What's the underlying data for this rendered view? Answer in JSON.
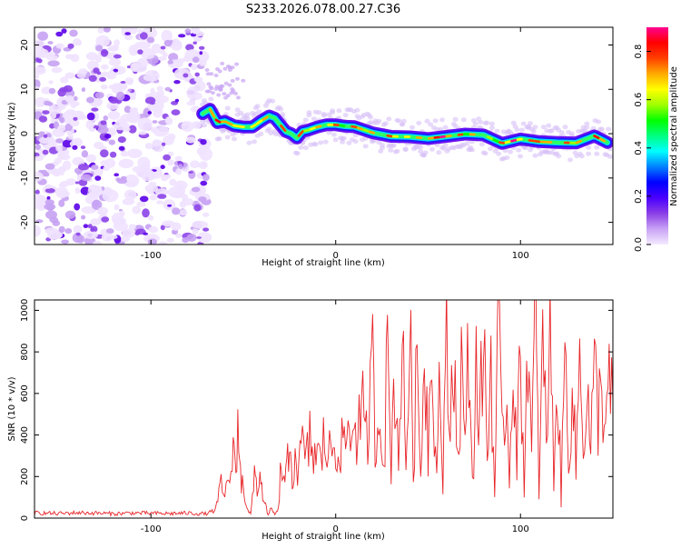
{
  "title": "S233.2026.078.00.27.C36",
  "chart_data": [
    {
      "type": "heatmap",
      "name": "spectrogram",
      "xlabel": "Height of straight line (km)",
      "ylabel": "Frequency (Hz)",
      "xlim": [
        -163,
        150
      ],
      "ylim": [
        -25,
        24
      ],
      "xticks": [
        -100,
        0,
        100
      ],
      "xtick_labels": [
        "-100",
        "0",
        "100"
      ],
      "yticks": [
        -20,
        -10,
        0,
        10,
        20
      ],
      "ytick_labels": [
        "-20",
        "-10",
        "0",
        "10",
        "20"
      ],
      "noise_region_x": [
        -163,
        -70
      ],
      "ridge": {
        "x": [
          -72,
          -68,
          -64,
          -60,
          -55,
          -50,
          -45,
          -40,
          -36,
          -33,
          -30,
          -27,
          -24,
          -21,
          -18,
          -15,
          -10,
          -5,
          0,
          5,
          10,
          20,
          30,
          40,
          50,
          60,
          70,
          80,
          90,
          100,
          110,
          120,
          130,
          140,
          147
        ],
        "y": [
          4.5,
          5.5,
          2.5,
          2.8,
          1.8,
          1.5,
          1.5,
          3.0,
          4.0,
          3.5,
          2.0,
          0.5,
          0,
          -1.0,
          0.5,
          0.8,
          1.5,
          2.0,
          2.0,
          1.7,
          1.6,
          0.2,
          -0.6,
          -0.7,
          -1.1,
          -0.6,
          -0.1,
          -0.3,
          -2.2,
          -1.2,
          -1.8,
          -2.0,
          -2.1,
          -0.5,
          -2.0
        ]
      },
      "colorbar": {
        "label": "Normalized spectral amplitude",
        "range": [
          0.0,
          0.9
        ],
        "ticks": [
          0.0,
          0.2,
          0.4,
          0.6,
          0.8
        ],
        "tick_labels": [
          "0.0",
          "0.2",
          "0.4",
          "0.6",
          "0.8"
        ],
        "colors": [
          "#f4eaff",
          "#c9a4f5",
          "#8b3fe6",
          "#4a00ff",
          "#0000ff",
          "#0080ff",
          "#00ffff",
          "#00ff80",
          "#00ff00",
          "#a0ff00",
          "#ffff00",
          "#ffaa00",
          "#ff4000",
          "#ff0000",
          "#ff0090"
        ]
      }
    },
    {
      "type": "line",
      "name": "snr",
      "xlabel": "Height of straight line (km)",
      "ylabel": "SNR (10 * v/v)",
      "xlim": [
        -163,
        150
      ],
      "ylim": [
        0,
        1050
      ],
      "xticks": [
        -100,
        0,
        100
      ],
      "xtick_labels": [
        "-100",
        "0",
        "100"
      ],
      "yticks": [
        0,
        200,
        400,
        600,
        800,
        1000
      ],
      "ytick_labels": [
        "0",
        "200",
        "400",
        "600",
        "800",
        "1000"
      ],
      "color": "#e8262a",
      "series": [
        {
          "name": "SNR",
          "x": [
            -163,
            -150,
            -140,
            -130,
            -120,
            -110,
            -100,
            -90,
            -80,
            -70,
            -65,
            -62,
            -60,
            -58,
            -56,
            -55,
            -54,
            -53,
            -52,
            -51,
            -50,
            -49,
            -48,
            -47,
            -46,
            -45,
            -44,
            -43,
            -42,
            -41,
            -40,
            -39,
            -38,
            -37,
            -36,
            -35,
            -34,
            -33,
            -32,
            -31,
            -30,
            -29,
            -28,
            -27,
            -26,
            -25,
            -24,
            -23,
            -22,
            -20,
            -18,
            -16,
            -14,
            -12,
            -10,
            -8,
            -6,
            -4,
            -2,
            0,
            2,
            4,
            6,
            8,
            10,
            12,
            14,
            16,
            18,
            20,
            22,
            24,
            26,
            28,
            30,
            32,
            34,
            36,
            38,
            40,
            42,
            44,
            46,
            48,
            50,
            52,
            54,
            56,
            58,
            60,
            62,
            64,
            66,
            68,
            70,
            72,
            74,
            76,
            78,
            80,
            82,
            84,
            86,
            88,
            90,
            92,
            94,
            96,
            98,
            100,
            102,
            104,
            106,
            108,
            110,
            112,
            114,
            116,
            118,
            120,
            122,
            124,
            126,
            128,
            130,
            132,
            134,
            136,
            138,
            140,
            142,
            144,
            146,
            148,
            150
          ],
          "y": [
            25,
            22,
            26,
            24,
            21,
            25,
            23,
            22,
            24,
            20,
            40,
            160,
            90,
            230,
            180,
            420,
            200,
            470,
            260,
            150,
            190,
            80,
            60,
            30,
            20,
            90,
            210,
            180,
            120,
            230,
            150,
            70,
            60,
            25,
            20,
            45,
            30,
            20,
            25,
            40,
            210,
            170,
            240,
            200,
            270,
            220,
            290,
            180,
            320,
            230,
            350,
            260,
            380,
            300,
            310,
            260,
            410,
            280,
            360,
            330,
            400,
            300,
            440,
            350,
            520,
            380,
            580,
            330,
            480,
            720,
            300,
            650,
            250,
            780,
            280,
            690,
            320,
            820,
            260,
            900,
            300,
            700,
            220,
            860,
            340,
            950,
            280,
            610,
            180,
            800,
            400,
            920,
            250,
            750,
            300,
            880,
            160,
            700,
            420,
            960,
            260,
            780,
            110,
            900,
            350,
            640,
            200,
            850,
            300,
            720,
            180,
            920,
            260,
            1050,
            140,
            780,
            400,
            860,
            220,
            700,
            90,
            800,
            310,
            640,
            250,
            760,
            420,
            600,
            350,
            680,
            510,
            640,
            460,
            600,
            560
          ]
        }
      ]
    }
  ]
}
